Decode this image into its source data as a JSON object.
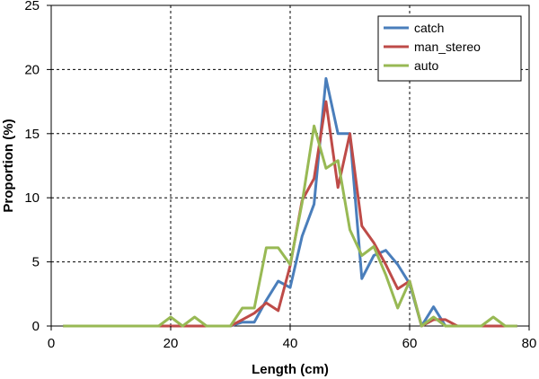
{
  "chart_data": {
    "type": "line",
    "title": "",
    "xlabel": "Length (cm)",
    "ylabel": "Proportion (%)",
    "xlim": [
      0,
      80
    ],
    "ylim": [
      0,
      25
    ],
    "xticks": [
      0,
      20,
      40,
      60,
      80
    ],
    "yticks": [
      0,
      5,
      10,
      15,
      20,
      25
    ],
    "grid": "dashed",
    "legend_position": "top-right",
    "series": [
      {
        "name": "catch",
        "color": "#4a7ebb",
        "x": [
          2,
          4,
          6,
          8,
          10,
          12,
          14,
          16,
          18,
          20,
          22,
          24,
          26,
          28,
          30,
          32,
          34,
          36,
          38,
          40,
          42,
          44,
          46,
          48,
          50,
          52,
          54,
          56,
          58,
          60,
          62,
          64,
          66,
          68,
          70,
          72,
          74,
          76,
          78
        ],
        "values": [
          0,
          0,
          0,
          0,
          0,
          0,
          0,
          0,
          0,
          0,
          0,
          0,
          0,
          0,
          0,
          0.3,
          0.3,
          2,
          3.5,
          3,
          7,
          9.5,
          19.3,
          15,
          15,
          3.7,
          5.5,
          5.9,
          4.8,
          3.3,
          0,
          1.5,
          0,
          0,
          0,
          0,
          0,
          0,
          0
        ]
      },
      {
        "name": "man_stereo",
        "color": "#be4b48",
        "x": [
          2,
          4,
          6,
          8,
          10,
          12,
          14,
          16,
          18,
          20,
          22,
          24,
          26,
          28,
          30,
          32,
          34,
          36,
          38,
          40,
          42,
          44,
          46,
          48,
          50,
          52,
          54,
          56,
          58,
          60,
          62,
          64,
          66,
          68,
          70,
          72,
          74,
          76,
          78
        ],
        "values": [
          0,
          0,
          0,
          0,
          0,
          0,
          0,
          0,
          0,
          0,
          0,
          0,
          0,
          0,
          0,
          0.5,
          1,
          1.8,
          1.2,
          4.7,
          9.8,
          11.5,
          17.5,
          10.8,
          15,
          7.8,
          6.5,
          4.8,
          2.9,
          3.5,
          0,
          0.5,
          0.5,
          0,
          0,
          0,
          0,
          0,
          0
        ]
      },
      {
        "name": "auto",
        "color": "#98b954",
        "x": [
          2,
          4,
          6,
          8,
          10,
          12,
          14,
          16,
          18,
          20,
          22,
          24,
          26,
          28,
          30,
          32,
          34,
          36,
          38,
          40,
          42,
          44,
          46,
          48,
          50,
          52,
          54,
          56,
          58,
          60,
          62,
          64,
          66,
          68,
          70,
          72,
          74,
          76,
          78
        ],
        "values": [
          0,
          0,
          0,
          0,
          0,
          0,
          0,
          0,
          0,
          0.7,
          0,
          0.7,
          0,
          0,
          0,
          1.4,
          1.4,
          6.1,
          6.1,
          4.8,
          9.6,
          15.6,
          12.3,
          12.9,
          7.5,
          5.5,
          6.2,
          4,
          1.4,
          3.5,
          0,
          0.7,
          0,
          0,
          0,
          0,
          0.7,
          0,
          0
        ]
      }
    ]
  }
}
